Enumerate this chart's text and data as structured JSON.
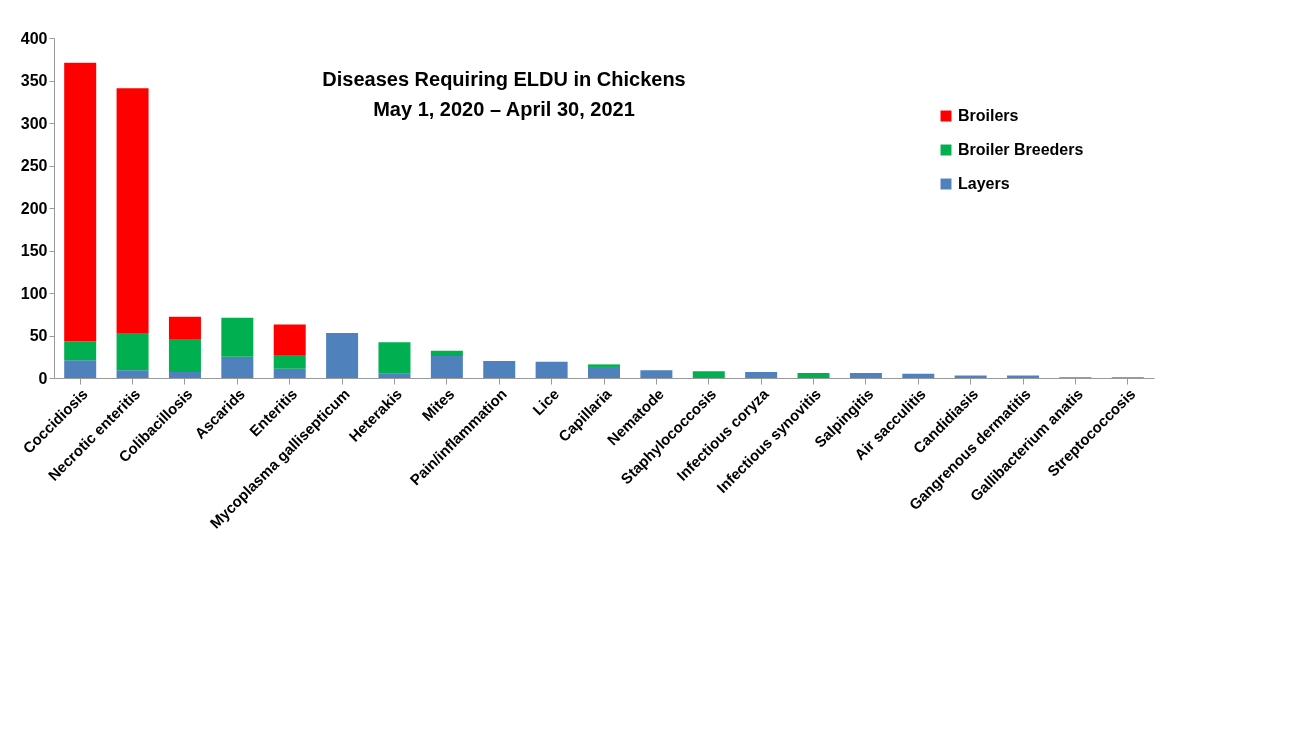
{
  "chart_data": {
    "type": "bar",
    "title": "Diseases Requiring ELDU in Chickens",
    "subtitle": "May 1, 2020 – April 30, 2021",
    "categories": [
      "Coccidiosis",
      "Necrotic enteritis",
      "Colibacillosis",
      "Ascarids",
      "Enteritis",
      "Mycoplasma gallisepticum",
      "Heterakis",
      "Mites",
      "Pain/inflammation",
      "Lice",
      "Capillaria",
      "Nematode",
      "Staphylococcosis",
      "Infectious coryza",
      "Infectious synovitis",
      "Salpingitis",
      "Air sacculitis",
      "Candidiasis",
      "Gangrenous dermatitis",
      "Gallibacterium anatis",
      "Streptococcosis"
    ],
    "stacked": true,
    "series": [
      {
        "name": "Layers",
        "color": "#4f81bd",
        "values": [
          21,
          9,
          7,
          25,
          11,
          53,
          5,
          26,
          20,
          19,
          13,
          9,
          0,
          7,
          0,
          6,
          5,
          3,
          3,
          1,
          1
        ]
      },
      {
        "name": "Broiler Breeders",
        "color": "#00b050",
        "values": [
          22,
          44,
          38,
          46,
          16,
          0,
          37,
          6,
          0,
          0,
          3,
          0,
          8,
          0,
          6,
          0,
          0,
          0,
          0,
          0,
          0
        ]
      },
      {
        "name": "Broilers",
        "color": "#ff0000",
        "values": [
          328,
          288,
          27,
          0,
          36,
          0,
          0,
          0,
          0,
          0,
          0,
          0,
          0,
          0,
          0,
          0,
          0,
          0,
          0,
          0,
          0
        ]
      }
    ],
    "ylim": [
      0,
      400
    ],
    "yticks": [
      0,
      50,
      100,
      150,
      200,
      250,
      300,
      350,
      400
    ],
    "grid": false,
    "legend": "top right"
  }
}
